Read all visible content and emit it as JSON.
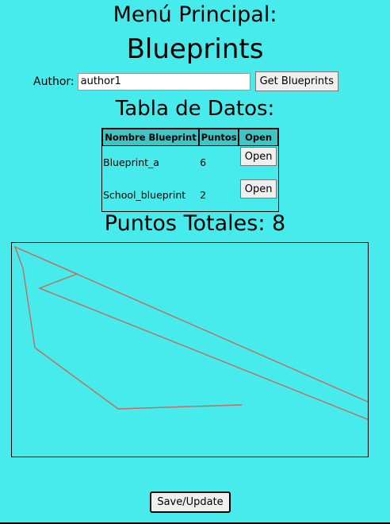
{
  "header": {
    "menu_title": "Menú Principal:",
    "app_title": "Blueprints"
  },
  "search": {
    "author_label": "Author:",
    "author_value": "author1",
    "get_button": "Get Blueprints"
  },
  "table": {
    "title": "Tabla de Datos:",
    "columns": [
      "Nombre Blueprint",
      "Puntos",
      "Open"
    ],
    "rows": [
      {
        "name": "Blueprint_a",
        "points": "6",
        "action": "Open"
      },
      {
        "name": "School_blueprint",
        "points": "2",
        "action": "Open"
      }
    ]
  },
  "totals": {
    "label": "Puntos Totales:",
    "value": "8"
  },
  "canvas": {
    "stroke_color": "#c46a5a",
    "background": "#48ebeb"
  },
  "actions": {
    "save_button": "Save/Update"
  }
}
